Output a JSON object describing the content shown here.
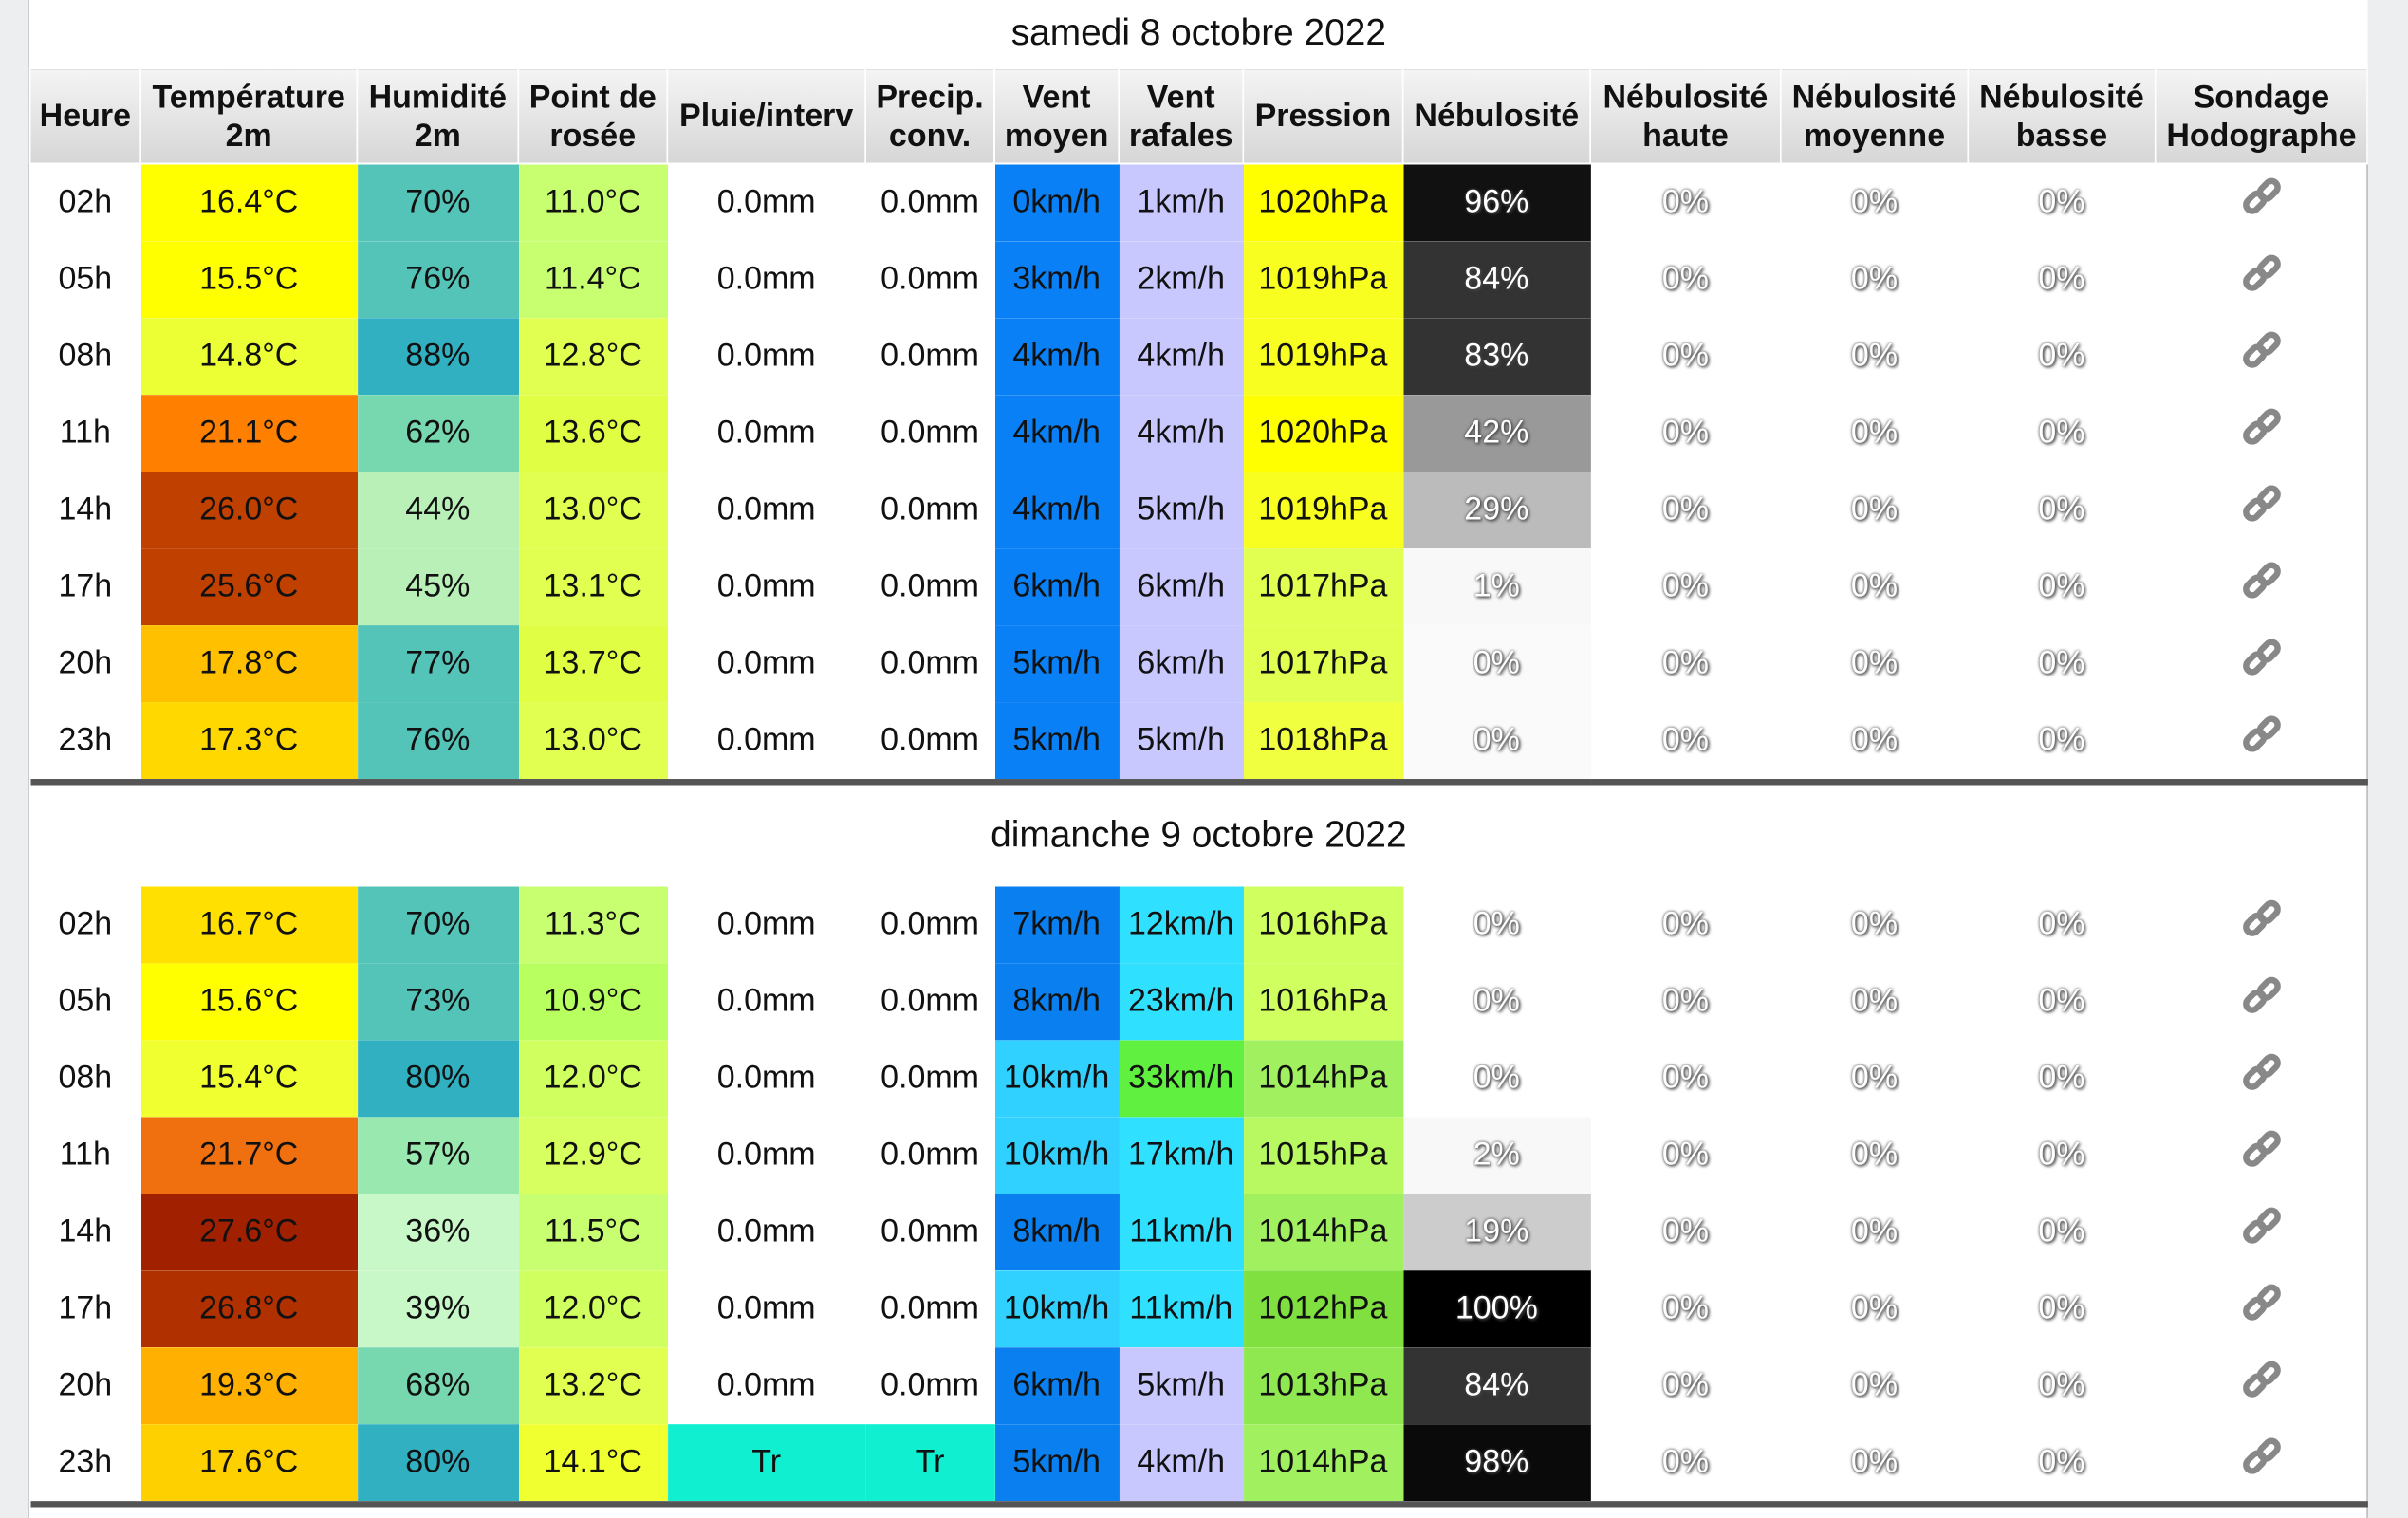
{
  "header": [
    "Heure",
    "Température 2m",
    "Humidité 2m",
    "Point de rosée",
    "Pluie/interv",
    "Precip. conv.",
    "Vent moyen",
    "Vent rafales",
    "Pression",
    "Nébulosité",
    "Nébulosité haute",
    "Nébulosité moyenne",
    "Nébulosité basse",
    "Sondage Hodographe"
  ],
  "days": [
    {
      "title": "samedi 8 octobre 2022",
      "rows": [
        [
          "02h",
          "16.4°C",
          "70%",
          "11.0°C",
          "0.0mm",
          "0.0mm",
          "0km/h",
          "1km/h",
          "1020hPa",
          "96%",
          "0%",
          "0%",
          "0%"
        ],
        [
          "05h",
          "15.5°C",
          "76%",
          "11.4°C",
          "0.0mm",
          "0.0mm",
          "3km/h",
          "2km/h",
          "1019hPa",
          "84%",
          "0%",
          "0%",
          "0%"
        ],
        [
          "08h",
          "14.8°C",
          "88%",
          "12.8°C",
          "0.0mm",
          "0.0mm",
          "4km/h",
          "4km/h",
          "1019hPa",
          "83%",
          "0%",
          "0%",
          "0%"
        ],
        [
          "11h",
          "21.1°C",
          "62%",
          "13.6°C",
          "0.0mm",
          "0.0mm",
          "4km/h",
          "4km/h",
          "1020hPa",
          "42%",
          "0%",
          "0%",
          "0%"
        ],
        [
          "14h",
          "26.0°C",
          "44%",
          "13.0°C",
          "0.0mm",
          "0.0mm",
          "4km/h",
          "5km/h",
          "1019hPa",
          "29%",
          "0%",
          "0%",
          "0%"
        ],
        [
          "17h",
          "25.6°C",
          "45%",
          "13.1°C",
          "0.0mm",
          "0.0mm",
          "6km/h",
          "6km/h",
          "1017hPa",
          "1%",
          "0%",
          "0%",
          "0%"
        ],
        [
          "20h",
          "17.8°C",
          "77%",
          "13.7°C",
          "0.0mm",
          "0.0mm",
          "5km/h",
          "6km/h",
          "1017hPa",
          "0%",
          "0%",
          "0%",
          "0%"
        ],
        [
          "23h",
          "17.3°C",
          "76%",
          "13.0°C",
          "0.0mm",
          "0.0mm",
          "5km/h",
          "5km/h",
          "1018hPa",
          "0%",
          "0%",
          "0%",
          "0%"
        ]
      ],
      "colors": [
        [
          "#ffff00",
          "#55c4b8",
          "#c8ff70",
          "#ffffff",
          "#ffffff",
          "#0a80f6",
          "#c8c8ff",
          "#ffff00",
          "#111111"
        ],
        [
          "#ffff00",
          "#55c4b8",
          "#c8ff70",
          "#ffffff",
          "#ffffff",
          "#0a80f6",
          "#c8c8ff",
          "#f8ff20",
          "#333333"
        ],
        [
          "#ecff34",
          "#30b0c0",
          "#e0ff50",
          "#ffffff",
          "#ffffff",
          "#0a80f6",
          "#c8c8ff",
          "#f8ff20",
          "#333333"
        ],
        [
          "#ff7f00",
          "#77d8b0",
          "#e0ff44",
          "#ffffff",
          "#ffffff",
          "#0a80f6",
          "#c8c8ff",
          "#ffff00",
          "#999999"
        ],
        [
          "#c04000",
          "#b8f0b8",
          "#e0ff50",
          "#ffffff",
          "#ffffff",
          "#0a80f6",
          "#c8c8ff",
          "#f8ff20",
          "#bbbbbb"
        ],
        [
          "#c04000",
          "#b8f0b8",
          "#e0ff50",
          "#ffffff",
          "#ffffff",
          "#0a80f6",
          "#c8c8ff",
          "#e0ff50",
          "#f8f8f8"
        ],
        [
          "#ffc000",
          "#55c4b8",
          "#e0ff44",
          "#ffffff",
          "#ffffff",
          "#0a80f6",
          "#c8c8ff",
          "#e0ff50",
          "#fafafa"
        ],
        [
          "#ffd800",
          "#55c4b8",
          "#e0ff50",
          "#ffffff",
          "#ffffff",
          "#0a80f6",
          "#c8c8ff",
          "#f0ff40",
          "#fafafa"
        ]
      ]
    },
    {
      "title": "dimanche 9 octobre 2022",
      "rows": [
        [
          "02h",
          "16.7°C",
          "70%",
          "11.3°C",
          "0.0mm",
          "0.0mm",
          "7km/h",
          "12km/h",
          "1016hPa",
          "0%",
          "0%",
          "0%",
          "0%"
        ],
        [
          "05h",
          "15.6°C",
          "73%",
          "10.9°C",
          "0.0mm",
          "0.0mm",
          "8km/h",
          "23km/h",
          "1016hPa",
          "0%",
          "0%",
          "0%",
          "0%"
        ],
        [
          "08h",
          "15.4°C",
          "80%",
          "12.0°C",
          "0.0mm",
          "0.0mm",
          "10km/h",
          "33km/h",
          "1014hPa",
          "0%",
          "0%",
          "0%",
          "0%"
        ],
        [
          "11h",
          "21.7°C",
          "57%",
          "12.9°C",
          "0.0mm",
          "0.0mm",
          "10km/h",
          "17km/h",
          "1015hPa",
          "2%",
          "0%",
          "0%",
          "0%"
        ],
        [
          "14h",
          "27.6°C",
          "36%",
          "11.5°C",
          "0.0mm",
          "0.0mm",
          "8km/h",
          "11km/h",
          "1014hPa",
          "19%",
          "0%",
          "0%",
          "0%"
        ],
        [
          "17h",
          "26.8°C",
          "39%",
          "12.0°C",
          "0.0mm",
          "0.0mm",
          "10km/h",
          "11km/h",
          "1012hPa",
          "100%",
          "0%",
          "0%",
          "0%"
        ],
        [
          "20h",
          "19.3°C",
          "68%",
          "13.2°C",
          "0.0mm",
          "0.0mm",
          "6km/h",
          "5km/h",
          "1013hPa",
          "84%",
          "0%",
          "0%",
          "0%"
        ],
        [
          "23h",
          "17.6°C",
          "80%",
          "14.1°C",
          "Tr",
          "Tr",
          "5km/h",
          "4km/h",
          "1014hPa",
          "98%",
          "0%",
          "0%",
          "0%"
        ]
      ],
      "colors": [
        [
          "#ffe000",
          "#55c4b8",
          "#c8ff70",
          "#ffffff",
          "#ffffff",
          "#0a80f0",
          "#30e0ff",
          "#d0ff60",
          "#ffffff"
        ],
        [
          "#ffff00",
          "#55c4b8",
          "#b8ff60",
          "#ffffff",
          "#ffffff",
          "#0a80f0",
          "#30e0ff",
          "#d0ff60",
          "#ffffff"
        ],
        [
          "#f0ff30",
          "#30b0c0",
          "#d0ff60",
          "#ffffff",
          "#ffffff",
          "#30d0ff",
          "#60f040",
          "#a0f060",
          "#ffffff"
        ],
        [
          "#f07010",
          "#98e8b0",
          "#d8ff60",
          "#ffffff",
          "#ffffff",
          "#30d0ff",
          "#30e0ff",
          "#b8f860",
          "#f8f8f8"
        ],
        [
          "#a02000",
          "#c8f8c8",
          "#c8ff70",
          "#ffffff",
          "#ffffff",
          "#0a80f0",
          "#30e0ff",
          "#a0f060",
          "#cccccc"
        ],
        [
          "#b03000",
          "#c8f8c8",
          "#d0ff60",
          "#ffffff",
          "#ffffff",
          "#30d0ff",
          "#30e0ff",
          "#80e040",
          "#000000"
        ],
        [
          "#ffb000",
          "#77d8b0",
          "#e0ff50",
          "#ffffff",
          "#ffffff",
          "#0a80f0",
          "#c8c8ff",
          "#90e850",
          "#333333"
        ],
        [
          "#ffd000",
          "#30b0c0",
          "#f0ff30",
          "#10f0d0",
          "#10f0d0",
          "#0a80f0",
          "#c8c8ff",
          "#a0f060",
          "#0a0a0a"
        ]
      ]
    }
  ]
}
